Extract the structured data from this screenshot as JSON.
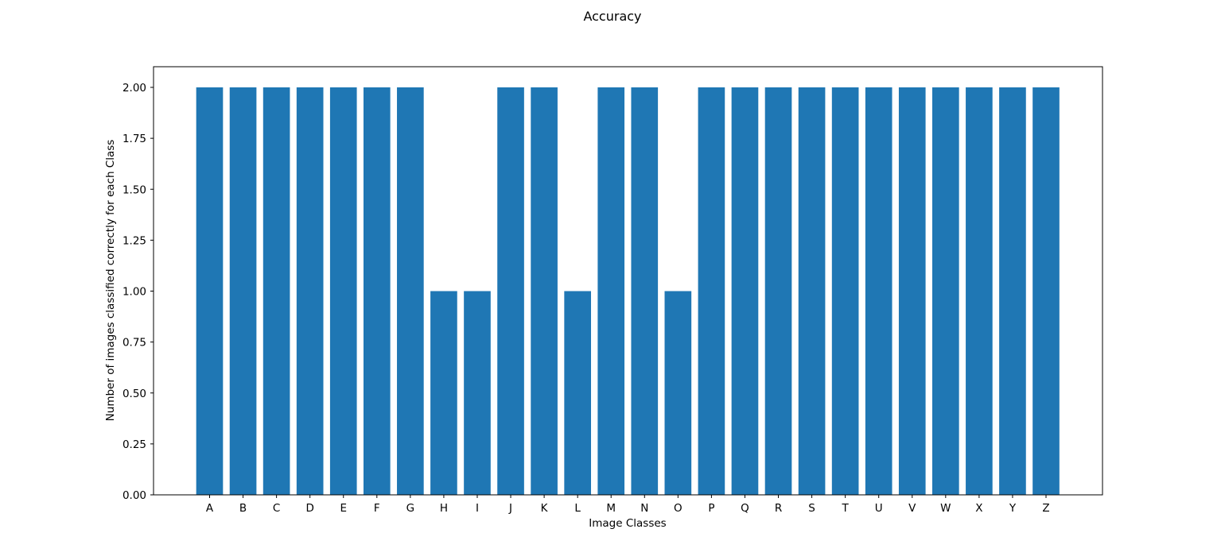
{
  "chart_data": {
    "type": "bar",
    "title": "Accuracy",
    "xlabel": "Image Classes",
    "ylabel": "Number of images classified correctly for each Class",
    "categories": [
      "A",
      "B",
      "C",
      "D",
      "E",
      "F",
      "G",
      "H",
      "I",
      "J",
      "K",
      "L",
      "M",
      "N",
      "O",
      "P",
      "Q",
      "R",
      "S",
      "T",
      "U",
      "V",
      "W",
      "X",
      "Y",
      "Z"
    ],
    "values": [
      2,
      2,
      2,
      2,
      2,
      2,
      2,
      1,
      1,
      2,
      2,
      1,
      2,
      2,
      1,
      2,
      2,
      2,
      2,
      2,
      2,
      2,
      2,
      2,
      2,
      2
    ],
    "ylim": [
      0,
      2.1
    ],
    "yticks": [
      "0.00",
      "0.25",
      "0.50",
      "0.75",
      "1.00",
      "1.25",
      "1.50",
      "1.75",
      "2.00"
    ],
    "grid": false,
    "bar_color": "#1f77b4"
  }
}
